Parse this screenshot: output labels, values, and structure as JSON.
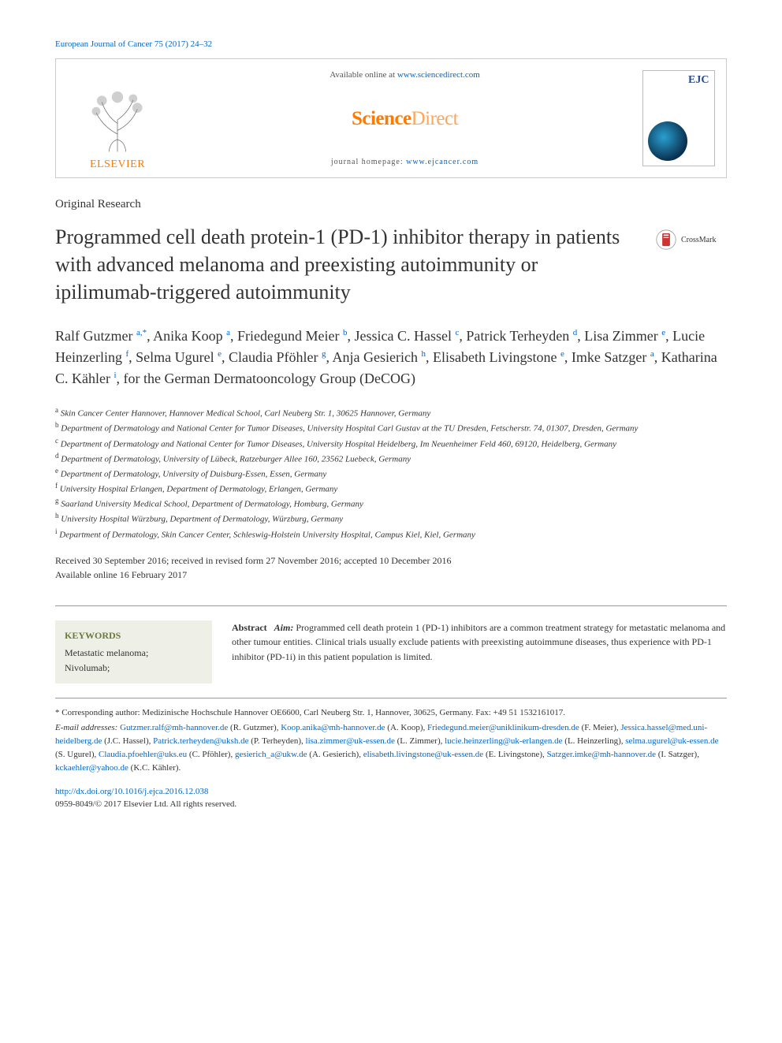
{
  "journal_ref": {
    "text": "European Journal of Cancer 75 (2017) 24–32",
    "link_color": "#0066cc"
  },
  "header": {
    "elsevier_label": "ELSEVIER",
    "available_prefix": "Available online at ",
    "available_link": "www.sciencedirect.com",
    "sd_logo_a": "Science",
    "sd_logo_b": "Direct",
    "homepage_prefix": "journal homepage: ",
    "homepage_link": "www.ejcancer.com",
    "cover_abbrev": "EJC"
  },
  "crossmark_label": "CrossMark",
  "article_type": "Original Research",
  "title": "Programmed cell death protein-1 (PD-1) inhibitor therapy in patients with advanced melanoma and preexisting autoimmunity or ipilimumab-triggered autoimmunity",
  "authors": [
    {
      "name": "Ralf Gutzmer",
      "sup": "a,*"
    },
    {
      "name": "Anika Koop",
      "sup": "a"
    },
    {
      "name": "Friedegund Meier",
      "sup": "b"
    },
    {
      "name": "Jessica C. Hassel",
      "sup": "c"
    },
    {
      "name": "Patrick Terheyden",
      "sup": "d"
    },
    {
      "name": "Lisa Zimmer",
      "sup": "e"
    },
    {
      "name": "Lucie Heinzerling",
      "sup": "f"
    },
    {
      "name": "Selma Ugurel",
      "sup": "e"
    },
    {
      "name": "Claudia Pföhler",
      "sup": "g"
    },
    {
      "name": "Anja Gesierich",
      "sup": "h"
    },
    {
      "name": "Elisabeth Livingstone",
      "sup": "e"
    },
    {
      "name": "Imke Satzger",
      "sup": "a"
    },
    {
      "name": "Katharina C. Kähler",
      "sup": "i"
    }
  ],
  "authors_suffix": ", for the German Dermatooncology Group (DeCOG)",
  "affiliations": [
    {
      "k": "a",
      "t": "Skin Cancer Center Hannover, Hannover Medical School, Carl Neuberg Str. 1, 30625 Hannover, Germany"
    },
    {
      "k": "b",
      "t": "Department of Dermatology and National Center for Tumor Diseases, University Hospital Carl Gustav at the TU Dresden, Fetscherstr. 74, 01307, Dresden, Germany"
    },
    {
      "k": "c",
      "t": "Department of Dermatology and National Center for Tumor Diseases, University Hospital Heidelberg, Im Neuenheimer Feld 460, 69120, Heidelberg, Germany"
    },
    {
      "k": "d",
      "t": "Department of Dermatology, University of Lübeck, Ratzeburger Allee 160, 23562 Luebeck, Germany"
    },
    {
      "k": "e",
      "t": "Department of Dermatology, University of Duisburg-Essen, Essen, Germany"
    },
    {
      "k": "f",
      "t": "University Hospital Erlangen, Department of Dermatology, Erlangen, Germany"
    },
    {
      "k": "g",
      "t": "Saarland University Medical School, Department of Dermatology, Homburg, Germany"
    },
    {
      "k": "h",
      "t": "University Hospital Würzburg, Department of Dermatology, Würzburg, Germany"
    },
    {
      "k": "i",
      "t": "Department of Dermatology, Skin Cancer Center, Schleswig-Holstein University Hospital, Campus Kiel, Kiel, Germany"
    }
  ],
  "dates": {
    "line1": "Received 30 September 2016; received in revised form 27 November 2016; accepted 10 December 2016",
    "line2": "Available online 16 February 2017"
  },
  "keywords": {
    "heading": "KEYWORDS",
    "list": "Metastatic melanoma;\nNivolumab;"
  },
  "abstract": {
    "label": "Abstract",
    "aim_label": "Aim:",
    "aim_text": " Programmed cell death protein 1 (PD-1) inhibitors are a common treatment strategy for metastatic melanoma and other tumour entities. Clinical trials usually exclude patients with preexisting autoimmune diseases, thus experience with PD-1 inhibitor (PD-1i) in this patient population is limited."
  },
  "footnotes": {
    "corresponding": "* Corresponding author: Medizinische Hochschule Hannover OE6600, Carl Neuberg Str. 1, Hannover, 30625, Germany. Fax: +49 51 1532161017.",
    "email_label": "E-mail addresses: ",
    "emails": [
      {
        "addr": "Gutzmer.ralf@mh-hannover.de",
        "who": "(R. Gutzmer)"
      },
      {
        "addr": "Koop.anika@mh-hannover.de",
        "who": "(A. Koop)"
      },
      {
        "addr": "Friedegund.meier@uniklinikum-dresden.de",
        "who": "(F. Meier)"
      },
      {
        "addr": "Jessica.hassel@med.uni-heidelberg.de",
        "who": "(J.C. Hassel)"
      },
      {
        "addr": "Patrick.terheyden@uksh.de",
        "who": "(P. Terheyden)"
      },
      {
        "addr": "lisa.zimmer@uk-essen.de",
        "who": "(L. Zimmer)"
      },
      {
        "addr": "lucie.heinzerling@uk-erlangen.de",
        "who": "(L. Heinzerling)"
      },
      {
        "addr": "selma.ugurel@uk-essen.de",
        "who": "(S. Ugurel)"
      },
      {
        "addr": "Claudia.pfoehler@uks.eu",
        "who": "(C. Pföhler)"
      },
      {
        "addr": "gesierich_a@ukw.de",
        "who": "(A. Gesierich)"
      },
      {
        "addr": "elisabeth.livingstone@uk-essen.de",
        "who": "(E. Livingstone)"
      },
      {
        "addr": "Satzger.imke@mh-hannover.de",
        "who": "(I. Satzger)"
      },
      {
        "addr": "kckaehler@yahoo.de",
        "who": "(K.C. Kähler)."
      }
    ]
  },
  "doi": {
    "link": "http://dx.doi.org/10.1016/j.ejca.2016.12.038",
    "copyright": "0959-8049/© 2017 Elsevier Ltd. All rights reserved."
  },
  "colors": {
    "link": "#0066cc",
    "elsevier_orange": "#ff7a00",
    "kw_bg": "#eef0e8",
    "kw_head": "#6a7a3a"
  }
}
